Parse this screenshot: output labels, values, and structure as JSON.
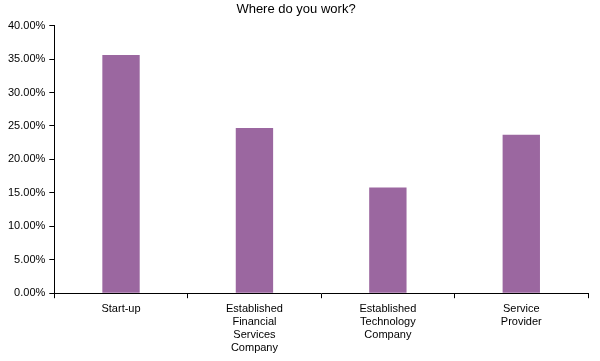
{
  "chart_data": {
    "type": "bar",
    "title": "Where do you work?",
    "categories": [
      "Start-up",
      "Established Financial Services Company",
      "Established Technology Company",
      "Service Provider"
    ],
    "values": [
      35.6,
      24.7,
      15.8,
      23.7
    ],
    "color": "#9b67a0",
    "ylim": [
      0,
      40
    ],
    "yticks": [
      {
        "value": 0,
        "label": "0.00%"
      },
      {
        "value": 5,
        "label": "5.00%"
      },
      {
        "value": 10,
        "label": "10.00%"
      },
      {
        "value": 15,
        "label": "15.00%"
      },
      {
        "value": 20,
        "label": "20.00%"
      },
      {
        "value": 25,
        "label": "25.00%"
      },
      {
        "value": 30,
        "label": "30.00%"
      },
      {
        "value": 35,
        "label": "35.00%"
      },
      {
        "value": 40,
        "label": "40.00%"
      }
    ],
    "grid": false
  }
}
